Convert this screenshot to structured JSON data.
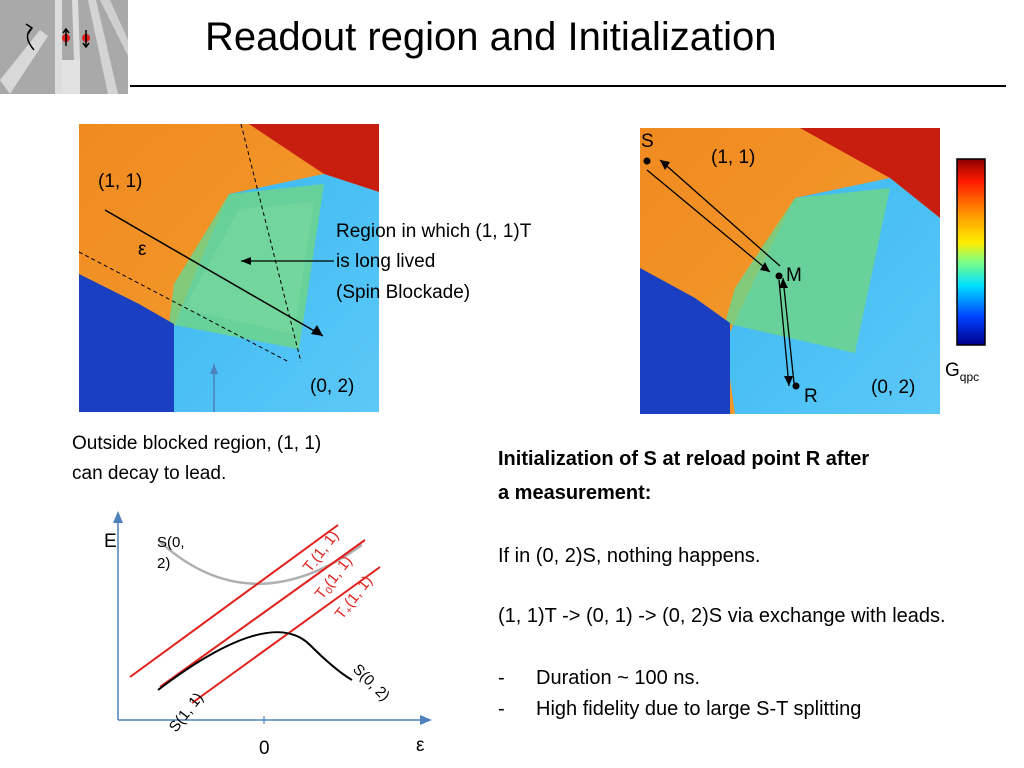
{
  "title": "Readout region and Initialization",
  "left_plot": {
    "label_11": "(1, 1)",
    "label_02": "(0, 2)",
    "epsilon": "ε",
    "region_note_line1": "Region in which (1, 1)T",
    "region_note_line2": "is long lived",
    "region_note_line3": "(Spin Blockade)",
    "outside_line1": "Outside blocked region, (1, 1)",
    "outside_line2": "can decay to lead."
  },
  "right_plot": {
    "label_11": "(1, 1)",
    "label_02": "(0, 2)",
    "point_S": "S",
    "point_M": "M",
    "point_R": "R",
    "colorbar_label": "G",
    "colorbar_sub": "qpc"
  },
  "energy_diagram": {
    "y_axis": "E",
    "x_axis": "ε",
    "zero": "0",
    "S02_top": "S(0,",
    "S02_top2": "2)",
    "Tminus": "T",
    "Tminus_sub": "-",
    "T0": "T",
    "T0_sub": "0",
    "Tplus": "T",
    "Tplus_sub": "+",
    "T_suffix": "(1, 1)",
    "S11": "S(1, 1)",
    "S02_bottom": "S(0, 2)"
  },
  "right_text": {
    "heading_line1": "Initialization of S at reload point R after",
    "heading_line2": "a measurement:",
    "p1": "If in (0, 2)S, nothing happens.",
    "p2": "(1, 1)T -> (0, 1) -> (0, 2)S via exchange with leads.",
    "bullet1_dash": "-",
    "bullet1": "Duration ~ 100 ns.",
    "bullet2_dash": "-",
    "bullet2": "High fidelity due to large S-T splitting"
  },
  "colors": {
    "red_line": "#e0201c",
    "axis_blue": "#4f81bd",
    "gray_curve": "#b0b0b0"
  }
}
